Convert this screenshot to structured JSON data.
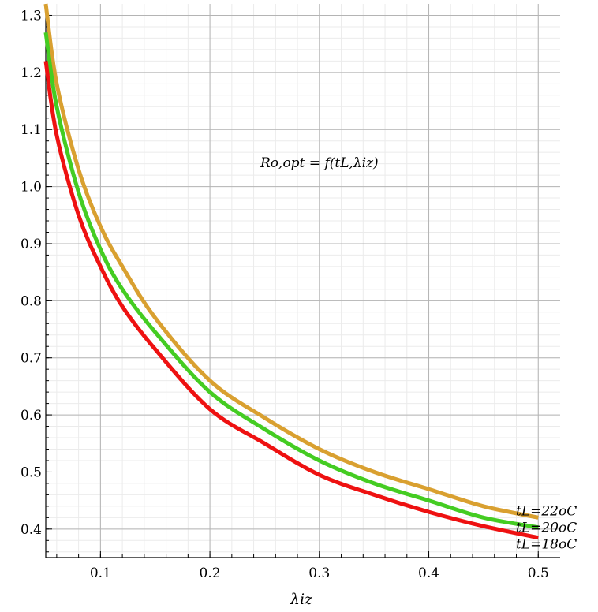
{
  "chart_data": {
    "type": "line",
    "title": "",
    "xlabel": "λiz",
    "ylabel": "",
    "annotation": "Ro,opt = f(tL,λiz)",
    "xlim": [
      0.05,
      0.52
    ],
    "ylim": [
      0.35,
      1.32
    ],
    "xticks": [
      0.1,
      0.2,
      0.3,
      0.4,
      0.5
    ],
    "xtick_labels": [
      "0.1",
      "0.2",
      "0.3",
      "0.4",
      "0.5"
    ],
    "yticks": [
      0.4,
      0.5,
      0.6,
      0.7,
      0.8,
      0.9,
      1.0,
      1.1,
      1.2,
      1.3
    ],
    "ytick_labels": [
      "0.4",
      "0.5",
      "0.6",
      "0.7",
      "0.8",
      "0.9",
      "1.0",
      "1.1",
      "1.2",
      "1.3"
    ],
    "grid": true,
    "x": [
      0.05,
      0.06,
      0.08,
      0.1,
      0.12,
      0.15,
      0.2,
      0.25,
      0.3,
      0.35,
      0.4,
      0.45,
      0.5
    ],
    "series": [
      {
        "name": "tL=22oC",
        "color": "#d9a030",
        "values": [
          1.32,
          1.18,
          1.03,
          0.93,
          0.86,
          0.77,
          0.66,
          0.595,
          0.54,
          0.5,
          0.47,
          0.44,
          0.42
        ]
      },
      {
        "name": "tL=20oC",
        "color": "#44cc22",
        "values": [
          1.27,
          1.14,
          0.99,
          0.89,
          0.82,
          0.745,
          0.64,
          0.575,
          0.52,
          0.48,
          0.45,
          0.42,
          0.403
        ]
      },
      {
        "name": "tL=18oC",
        "color": "#ee1111",
        "values": [
          1.22,
          1.09,
          0.95,
          0.86,
          0.79,
          0.715,
          0.61,
          0.55,
          0.495,
          0.46,
          0.43,
          0.405,
          0.385
        ]
      }
    ]
  }
}
